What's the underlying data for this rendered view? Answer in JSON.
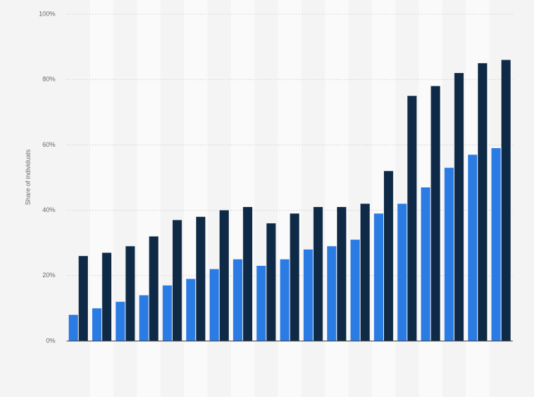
{
  "chart_data": {
    "type": "bar",
    "y_label": "Share of individuals",
    "categories": [
      null,
      null,
      null,
      null,
      null,
      null,
      null,
      null,
      null,
      null,
      null,
      null,
      null,
      null,
      null,
      null,
      null,
      null,
      null
    ],
    "series": [
      {
        "color": "#2b7be4",
        "values": [
          8,
          10,
          12,
          14,
          17,
          19,
          22,
          25,
          23,
          25,
          28,
          29,
          31,
          39,
          42,
          47,
          53,
          57,
          59
        ]
      },
      {
        "color": "#0f2a46",
        "values": [
          26,
          27,
          29,
          32,
          37,
          38,
          40,
          41,
          36,
          39,
          41,
          41,
          42,
          52,
          75,
          78,
          82,
          85,
          86
        ]
      }
    ],
    "ylim": [
      0,
      100
    ],
    "yticks": [
      {
        "value": 0,
        "label": "0%"
      },
      {
        "value": 20,
        "label": "20%"
      },
      {
        "value": 40,
        "label": "40%"
      },
      {
        "value": 60,
        "label": "60%"
      },
      {
        "value": 80,
        "label": "80%"
      },
      {
        "value": 100,
        "label": "100%"
      }
    ],
    "grid": true
  }
}
